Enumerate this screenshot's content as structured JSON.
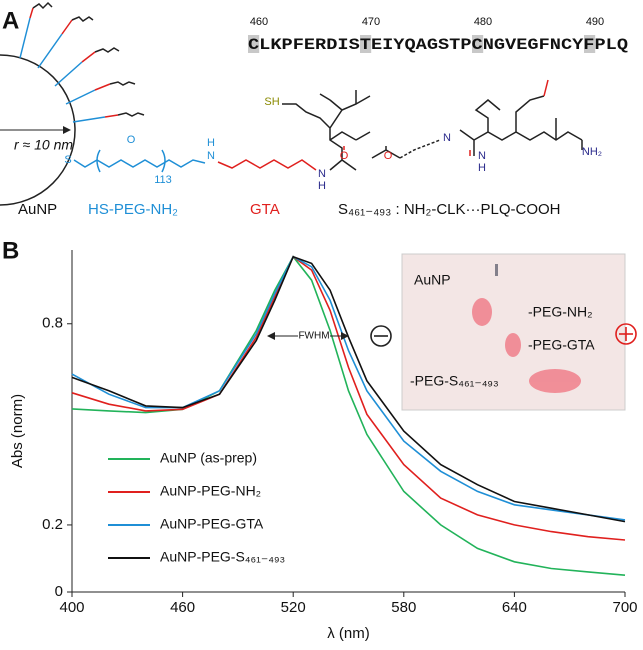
{
  "panel_a": {
    "label": "A",
    "residue_numbers": [
      460,
      470,
      480,
      490
    ],
    "sequence": "CLKPFERDISTEIYQAGSTPCNGVEGFNCYFPLQ",
    "radius_label": "r ≈ 10 nm",
    "structure_labels": [
      "S",
      "O",
      "113",
      "H",
      "N",
      "SH",
      "N",
      "H",
      "O",
      "N",
      "N",
      "H",
      "O",
      "NH₂"
    ],
    "labels": {
      "aunp": "AuNP",
      "peg": "HS-PEG-NH₂",
      "gta": "GTA",
      "peptide": "S₄₆₁₋₄₉₃ : NH₂-CLK···PLQ-COOH"
    }
  },
  "panel_b": {
    "label": "B",
    "inset": {
      "lanes": [
        "AuNP",
        "-PEG-NH₂",
        "-PEG-GTA",
        "-PEG-S₄₆₁₋₄₉₃"
      ]
    }
  },
  "chart_data": {
    "type": "line",
    "xlabel": "λ (nm)",
    "ylabel": "Abs (norm)",
    "annotation": "FWHM",
    "x": [
      400,
      420,
      440,
      460,
      480,
      500,
      510,
      520,
      530,
      540,
      550,
      560,
      580,
      600,
      620,
      640,
      660,
      680,
      700
    ],
    "xlim": [
      400,
      700
    ],
    "xticks": [
      400,
      460,
      520,
      580,
      640,
      700
    ],
    "ylim": [
      0,
      1.02
    ],
    "yticks": [
      0,
      0.2,
      0.8
    ],
    "legend": "lower left",
    "series": [
      {
        "name": "AuNP (as-prep)",
        "color": "#22b35a",
        "values": [
          0.546,
          0.54,
          0.535,
          0.545,
          0.6,
          0.78,
          0.9,
          1.0,
          0.93,
          0.78,
          0.6,
          0.47,
          0.3,
          0.2,
          0.13,
          0.09,
          0.07,
          0.06,
          0.05
        ]
      },
      {
        "name": "AuNP-PEG-NH₂",
        "color": "#e0201e",
        "values": [
          0.594,
          0.56,
          0.54,
          0.545,
          0.59,
          0.76,
          0.88,
          1.0,
          0.96,
          0.84,
          0.67,
          0.53,
          0.38,
          0.28,
          0.23,
          0.2,
          0.18,
          0.165,
          0.155
        ]
      },
      {
        "name": "AuNP-PEG-GTA",
        "color": "#1f8fd6",
        "values": [
          0.65,
          0.59,
          0.55,
          0.55,
          0.6,
          0.77,
          0.89,
          1.0,
          0.97,
          0.87,
          0.72,
          0.6,
          0.45,
          0.36,
          0.3,
          0.26,
          0.245,
          0.23,
          0.215
        ]
      },
      {
        "name": "AuNP-PEG-S₄₆₁₋₄₉₃",
        "color": "#111111",
        "values": [
          0.64,
          0.6,
          0.555,
          0.55,
          0.59,
          0.75,
          0.87,
          1.0,
          0.98,
          0.9,
          0.76,
          0.63,
          0.48,
          0.38,
          0.32,
          0.27,
          0.25,
          0.23,
          0.21
        ]
      }
    ]
  }
}
